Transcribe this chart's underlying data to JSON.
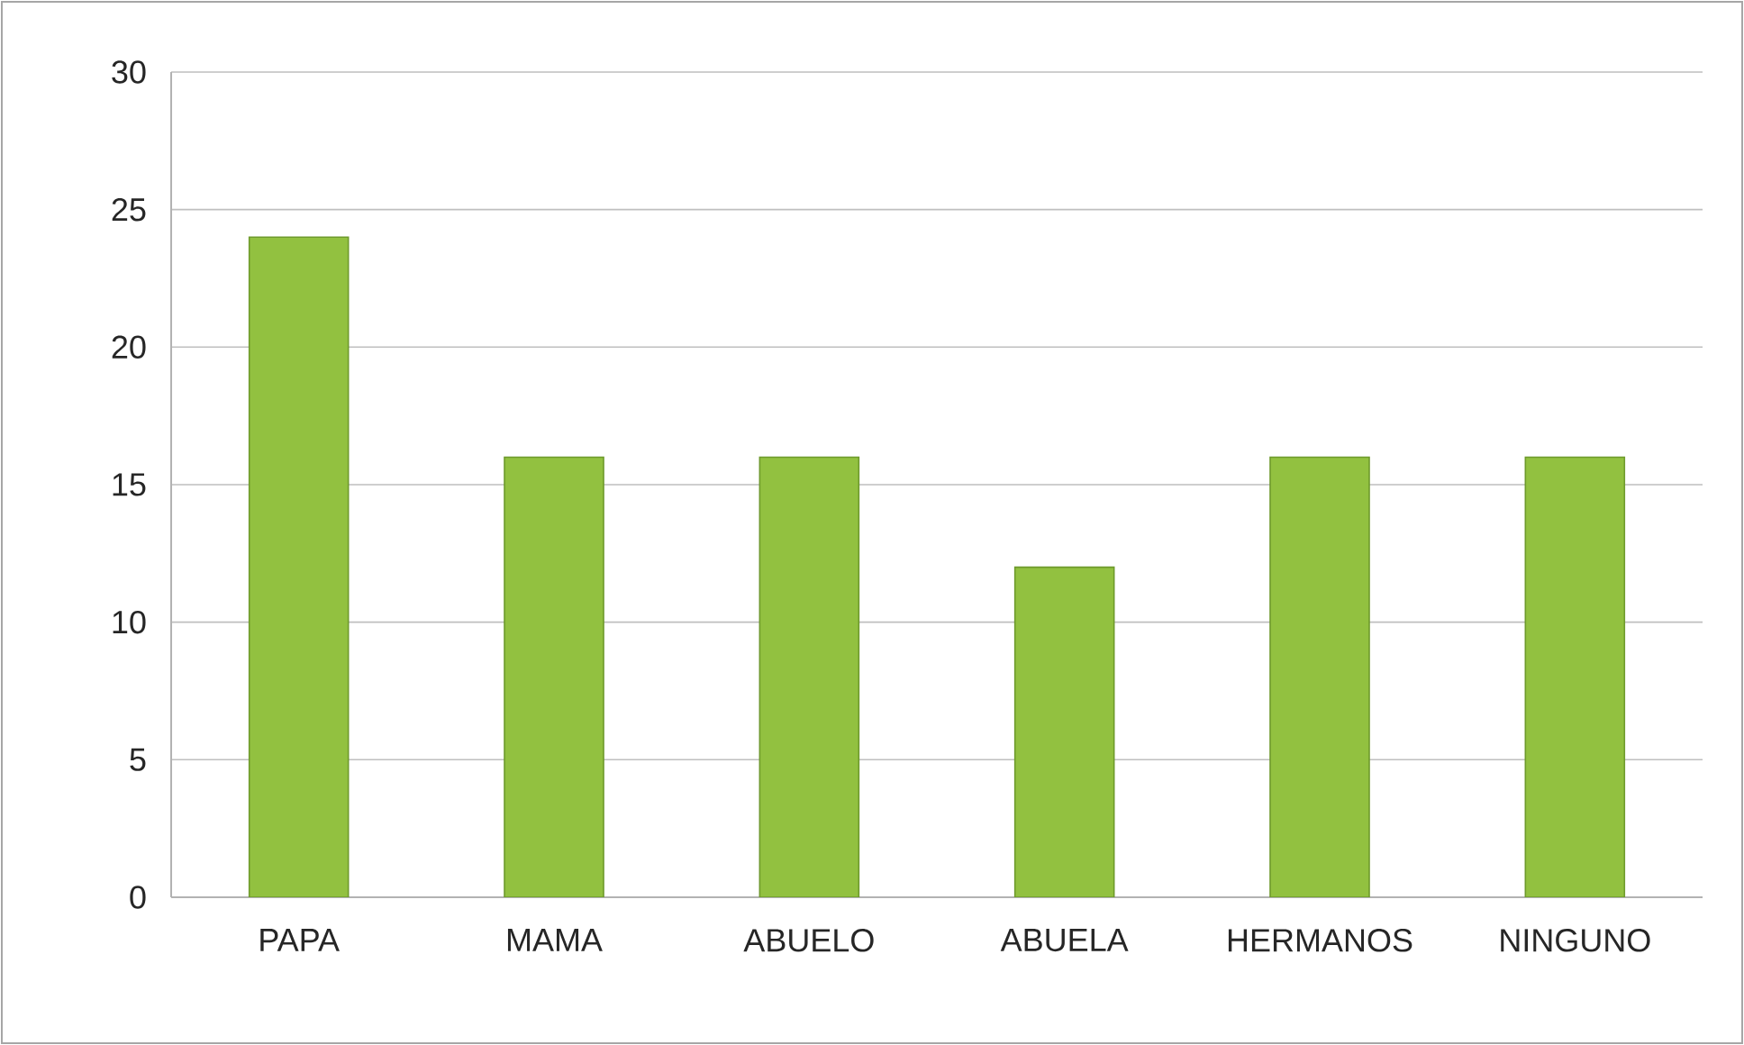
{
  "chart_data": {
    "type": "bar",
    "categories": [
      "PAPA",
      "MAMA",
      "ABUELO",
      "ABUELA",
      "HERMANOS",
      "NINGUNO"
    ],
    "values": [
      24,
      16,
      16,
      12,
      16,
      16
    ],
    "color": "#92c140",
    "ylim": [
      0,
      30
    ],
    "yticks": [
      0,
      5,
      10,
      15,
      20,
      25,
      30
    ],
    "grid": "y"
  }
}
